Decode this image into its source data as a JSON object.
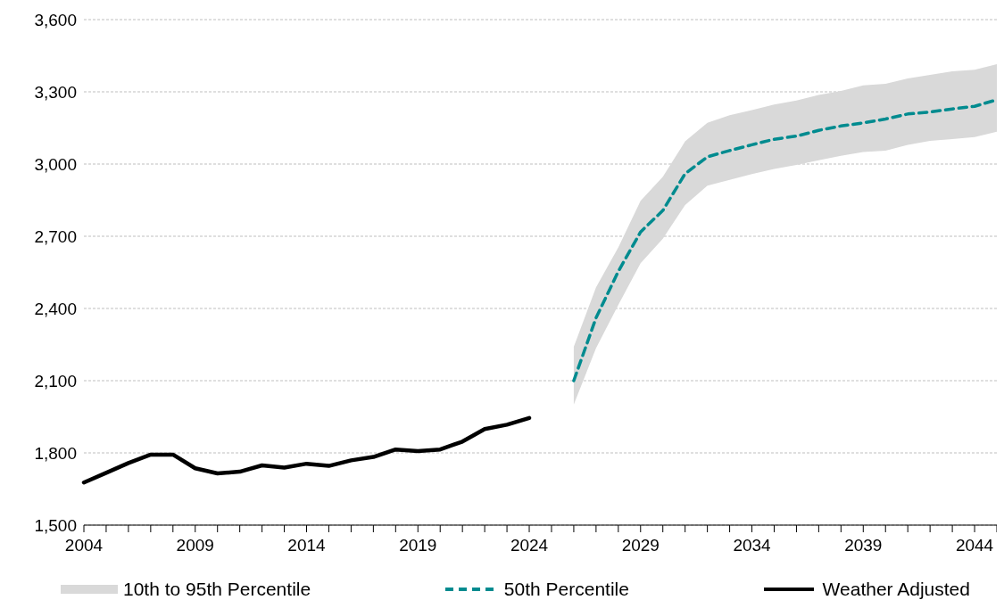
{
  "chart_data": {
    "type": "line",
    "categories": [
      "2004",
      null,
      null,
      null,
      null,
      "2009",
      null,
      null,
      null,
      null,
      "2014",
      null,
      null,
      null,
      null,
      "2019",
      null,
      null,
      null,
      null,
      "2024",
      null,
      null,
      null,
      null,
      "2029",
      null,
      null,
      null,
      null,
      "2034",
      null,
      null,
      null,
      null,
      "2039",
      null,
      null,
      null,
      null,
      "2044",
      null
    ],
    "series": [
      {
        "name": "50th Percentile",
        "color": "#008b8f",
        "line_style": "dashed",
        "values": [
          null,
          null,
          null,
          null,
          null,
          null,
          null,
          null,
          null,
          null,
          null,
          null,
          null,
          null,
          null,
          null,
          null,
          null,
          null,
          null,
          null,
          null,
          2100,
          2361,
          2554,
          2718,
          2807,
          2960,
          3030,
          3056,
          3080,
          3103,
          3116,
          3140,
          3158,
          3171,
          3187,
          3208,
          3216,
          3229,
          3240,
          3267
        ],
        "lower": [
          null,
          null,
          null,
          null,
          null,
          null,
          null,
          null,
          null,
          null,
          null,
          null,
          null,
          null,
          null,
          null,
          null,
          null,
          null,
          null,
          null,
          null,
          2001,
          2235,
          2415,
          2588,
          2690,
          2830,
          2910,
          2934,
          2958,
          2980,
          2996,
          3016,
          3034,
          3050,
          3056,
          3080,
          3096,
          3104,
          3112,
          3134
        ],
        "upper": [
          null,
          null,
          null,
          null,
          null,
          null,
          null,
          null,
          null,
          null,
          null,
          null,
          null,
          null,
          null,
          null,
          null,
          null,
          null,
          null,
          null,
          null,
          2241,
          2488,
          2654,
          2847,
          2947,
          3094,
          3171,
          3203,
          3224,
          3247,
          3264,
          3287,
          3304,
          3327,
          3333,
          3356,
          3370,
          3385,
          3392,
          3415
        ]
      },
      {
        "name": "Weather Adjusted",
        "color": "#000000",
        "line_style": "solid",
        "values": [
          1677,
          1717,
          1758,
          1793,
          1793,
          1736,
          1715,
          1722,
          1748,
          1739,
          1755,
          1746,
          1769,
          1783,
          1814,
          1807,
          1814,
          1847,
          1899,
          1917,
          1945,
          null,
          null,
          null,
          null,
          null,
          null,
          null,
          null,
          null,
          null,
          null,
          null,
          null,
          null,
          null,
          null,
          null,
          null,
          null,
          null,
          null
        ]
      }
    ],
    "annotations": [
      "10th to 95th Percentile"
    ],
    "ylim": [
      1500,
      3600
    ],
    "yticks": [
      {
        "value": 1500,
        "label": "1,500"
      },
      {
        "value": 1800,
        "label": "1,800"
      },
      {
        "value": 2100,
        "label": "2,100"
      },
      {
        "value": 2400,
        "label": "2,400"
      },
      {
        "value": 2700,
        "label": "2,700"
      },
      {
        "value": 3000,
        "label": "3,000"
      },
      {
        "value": 3300,
        "label": "3,300"
      },
      {
        "value": 3600,
        "label": "3,600"
      }
    ],
    "grid": "y",
    "legend": "bottom"
  }
}
